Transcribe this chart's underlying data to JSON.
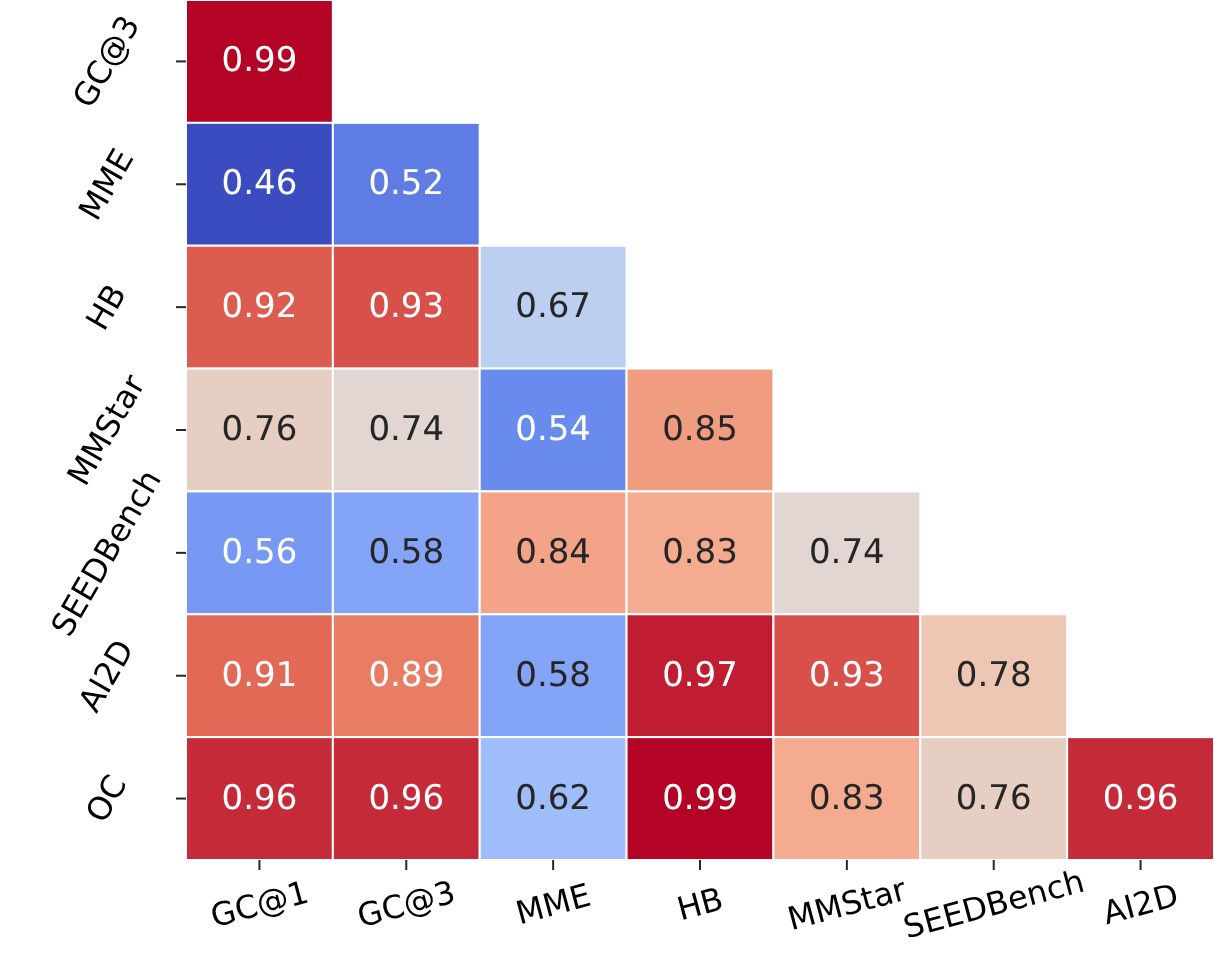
{
  "chart_data": {
    "type": "heatmap",
    "categories": [
      "GC@1",
      "GC@3",
      "MME",
      "HB",
      "MMStar",
      "SEEDBench",
      "AI2D"
    ],
    "y_categories": [
      "GC@3",
      "MME",
      "HB",
      "MMStar",
      "SEEDBench",
      "AI2D",
      "OC"
    ],
    "cells": [
      [
        0.99,
        null,
        null,
        null,
        null,
        null,
        null
      ],
      [
        0.46,
        0.52,
        null,
        null,
        null,
        null,
        null
      ],
      [
        0.92,
        0.93,
        0.67,
        null,
        null,
        null,
        null
      ],
      [
        0.76,
        0.74,
        0.54,
        0.85,
        null,
        null,
        null
      ],
      [
        0.56,
        0.58,
        0.84,
        0.83,
        0.74,
        null,
        null
      ],
      [
        0.91,
        0.89,
        0.58,
        0.97,
        0.93,
        0.78,
        null
      ],
      [
        0.96,
        0.96,
        0.62,
        0.99,
        0.83,
        0.76,
        0.96
      ]
    ],
    "data_labels": true
  }
}
